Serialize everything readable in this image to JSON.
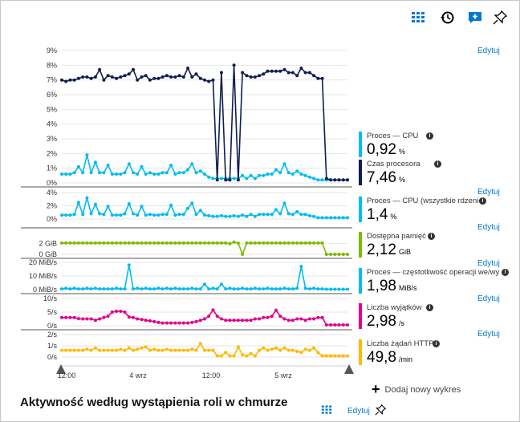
{
  "toolbar": {
    "icons": [
      "grid-icon",
      "history-icon",
      "feedback-icon",
      "pin-icon"
    ]
  },
  "edit_label": "Edytuj",
  "footer": {
    "title": "Aktywność według wystąpienia roli w chmurze",
    "edit_label": "Edytuj"
  },
  "add_chart_label": "Dodaj nowy wykres",
  "colors": {
    "cpu": "#00bcf2",
    "cpu_time": "#0f1e50",
    "memory": "#7fba00",
    "io": "#00bcf2",
    "exceptions": "#e3008c",
    "http": "#ffb900",
    "link": "#0078d4"
  },
  "chart_data": {
    "type": "line",
    "x_ticks": [
      "12:00",
      "4 wrz",
      "12:00",
      "5 wrz"
    ],
    "panels": [
      {
        "y_ticks": [
          "9%",
          "8%",
          "7%",
          "6%",
          "5%",
          "4%",
          "3%",
          "2%",
          "1%",
          "0%"
        ],
        "ylim": [
          0,
          9
        ],
        "series": [
          {
            "name": "Proces — CPU",
            "legend_value": "0,92",
            "unit": "%",
            "color": "#00bcf2",
            "values": [
              0.6,
              0.6,
              0.6,
              0.7,
              1.1,
              0.7,
              1.9,
              0.7,
              1.4,
              0.7,
              0.7,
              1.2,
              0.6,
              0.6,
              0.6,
              0.7,
              1.3,
              0.7,
              0.6,
              1.1,
              0.6,
              0.7,
              0.6,
              0.6,
              0.7,
              0.7,
              1.2,
              0.6,
              0.7,
              0.7,
              0.9,
              1.3,
              0.7,
              0.8,
              0.6,
              0.4,
              0.3,
              0.3,
              0.3,
              0.3,
              0.3,
              0.3,
              0.3,
              0.5,
              0.3,
              0.5,
              0.3,
              0.5,
              0.5,
              0.6,
              0.6,
              0.9,
              0.7,
              1.3,
              0.7,
              0.6,
              0.8,
              0.6,
              0.5,
              0.4,
              0.3,
              0.2,
              0.2,
              0.2,
              0.2,
              0.2,
              0.2,
              0.2,
              0.2
            ]
          },
          {
            "name": "Czas procesora",
            "legend_value": "7,46",
            "unit": "%",
            "color": "#0f1e50",
            "values": [
              7.0,
              6.9,
              7.0,
              7.0,
              7.1,
              7.2,
              7.2,
              7.1,
              7.2,
              7.7,
              7.0,
              7.3,
              7.2,
              7.1,
              7.2,
              7.3,
              7.4,
              7.7,
              7.0,
              7.2,
              7.3,
              7.0,
              7.1,
              7.1,
              7.2,
              7.3,
              7.2,
              7.2,
              7.3,
              7.2,
              7.8,
              7.2,
              7.4,
              7.1,
              7.0,
              6.9,
              7.0,
              0.2,
              7.5,
              0.2,
              0.2,
              8.0,
              0.2,
              7.5,
              7.3,
              7.2,
              7.2,
              7.3,
              7.4,
              7.6,
              7.6,
              7.6,
              7.6,
              7.7,
              7.5,
              7.5,
              7.3,
              7.8,
              7.5,
              7.5,
              7.3,
              7.1,
              7.1,
              0.3,
              0.2,
              0.2,
              0.2,
              0.2,
              0.2
            ]
          }
        ]
      },
      {
        "y_ticks": [
          "4%",
          "2%",
          "0%"
        ],
        "ylim": [
          0,
          4
        ],
        "series": [
          {
            "name": "Proces — CPU (wszystkie rdzenie)",
            "legend_value": "1,4",
            "unit": "%",
            "color": "#00bcf2",
            "values": [
              0.6,
              0.6,
              0.6,
              0.7,
              2.5,
              0.7,
              3.2,
              0.8,
              2.2,
              0.8,
              0.7,
              1.9,
              0.6,
              0.6,
              0.6,
              0.8,
              2.3,
              0.8,
              0.6,
              1.9,
              0.6,
              0.7,
              0.6,
              0.6,
              0.7,
              0.7,
              2.1,
              0.6,
              0.7,
              0.7,
              1.6,
              2.4,
              0.7,
              1.3,
              0.6,
              0.5,
              0.4,
              0.4,
              0.5,
              0.4,
              0.4,
              0.5,
              0.4,
              0.6,
              0.4,
              0.7,
              0.4,
              0.7,
              0.7,
              0.7,
              0.7,
              1.4,
              0.8,
              2.4,
              0.8,
              0.7,
              1.1,
              0.7,
              0.7,
              0.5,
              0.4,
              0.2,
              0.2,
              0.2,
              0.2,
              0.2,
              0.2,
              0.2,
              0.2
            ]
          }
        ]
      },
      {
        "y_ticks": [
          "2 GiB",
          "0 GiB"
        ],
        "ylim": [
          0,
          3
        ],
        "series": [
          {
            "name": "Dostępna pamięć",
            "legend_value": "2,12",
            "unit": "GiB",
            "color": "#7fba00",
            "values": [
              2.12,
              2.12,
              2.12,
              2.12,
              2.12,
              2.12,
              2.12,
              2.12,
              2.12,
              2.12,
              2.12,
              2.12,
              2.12,
              2.12,
              2.12,
              2.12,
              2.12,
              2.12,
              2.12,
              2.12,
              2.12,
              2.12,
              2.12,
              2.12,
              2.12,
              2.12,
              2.12,
              2.12,
              2.12,
              2.12,
              2.12,
              2.12,
              2.12,
              2.12,
              2.12,
              2.12,
              2.12,
              2.12,
              2.12,
              2.12,
              2.0,
              2.3,
              2.1,
              0.0,
              2.12,
              2.12,
              2.12,
              2.12,
              2.12,
              2.12,
              2.12,
              2.12,
              2.12,
              2.12,
              2.12,
              2.12,
              2.12,
              2.12,
              2.12,
              2.12,
              2.12,
              2.12,
              2.12,
              0.0,
              0.0,
              0.0,
              0.0,
              0.0,
              0.0
            ]
          }
        ]
      },
      {
        "y_ticks": [
          "20 MiB/s",
          "10 MiB/s",
          "0 MiB/s"
        ],
        "ylim": [
          0,
          20
        ],
        "series": [
          {
            "name": "Proces — częstotliwość operacji we/wy",
            "legend_value": "1,98",
            "unit": "MiB/s",
            "color": "#00bcf2",
            "values": [
              0.5,
              1.0,
              0.5,
              1.0,
              0.5,
              0.5,
              1.0,
              0.5,
              1.0,
              0.5,
              0.5,
              0.5,
              0.5,
              1.0,
              0.5,
              0.5,
              18.0,
              0.5,
              1.0,
              0.5,
              1.0,
              0.5,
              0.5,
              1.0,
              0.5,
              1.0,
              0.5,
              1.0,
              0.5,
              0.5,
              0.5,
              1.0,
              0.5,
              0.5,
              4.0,
              0.5,
              1.0,
              0.5,
              4.0,
              0.5,
              1.0,
              0.5,
              0.5,
              1.0,
              0.5,
              0.5,
              1.0,
              0.5,
              0.5,
              1.0,
              0.5,
              0.5,
              0.5,
              1.0,
              0.5,
              0.5,
              1.0,
              17.0,
              1.0,
              0.5,
              1.0,
              0.5,
              0.5,
              0.3,
              0.3,
              0.3,
              0.3,
              0.3,
              0.3
            ]
          }
        ]
      },
      {
        "y_ticks": [
          "10/s",
          "5/s",
          "0/s"
        ],
        "ylim": [
          0,
          10
        ],
        "series": [
          {
            "name": "Liczba wyjątków",
            "legend_value": "2,98",
            "unit": "/s",
            "color": "#e3008c",
            "values": [
              3.0,
              3.0,
              3.0,
              3.0,
              2.6,
              2.5,
              2.5,
              2.5,
              2.0,
              2.5,
              3.0,
              3.5,
              5.0,
              5.3,
              5.3,
              5.0,
              3.2,
              3.0,
              2.5,
              2.3,
              2.0,
              1.8,
              1.5,
              1.2,
              1.0,
              1.0,
              1.0,
              1.0,
              1.0,
              1.0,
              1.0,
              1.2,
              1.5,
              2.0,
              2.5,
              3.5,
              5.8,
              3.5,
              2.5,
              2.0,
              2.0,
              2.0,
              2.0,
              2.0,
              2.0,
              2.0,
              2.5,
              2.5,
              3.0,
              3.0,
              3.5,
              5.7,
              3.5,
              2.5,
              2.0,
              2.0,
              2.5,
              2.5,
              2.0,
              2.5,
              2.5,
              3.0,
              3.0,
              0.3,
              0.3,
              0.3,
              0.3,
              0.3,
              0.3
            ]
          }
        ]
      },
      {
        "y_ticks": [
          "2/s",
          "1/s",
          "0/s"
        ],
        "ylim": [
          0,
          2
        ],
        "series": [
          {
            "name": "Liczba żądań HTTP",
            "legend_value": "49,8",
            "unit": "/min",
            "color": "#ffb900",
            "values": [
              0.6,
              0.6,
              0.6,
              0.6,
              0.6,
              0.6,
              0.7,
              0.6,
              0.8,
              0.6,
              0.6,
              0.6,
              0.6,
              0.6,
              0.7,
              0.6,
              0.8,
              0.6,
              0.7,
              0.8,
              0.9,
              0.6,
              0.7,
              0.6,
              0.6,
              0.7,
              0.6,
              0.6,
              0.6,
              0.6,
              0.6,
              0.7,
              0.6,
              1.2,
              0.6,
              0.6,
              0.6,
              0.1,
              0.1,
              0.4,
              0.1,
              0.1,
              0.9,
              0.2,
              0.1,
              0.3,
              0.1,
              0.6,
              0.8,
              0.6,
              0.7,
              0.8,
              0.6,
              0.8,
              0.6,
              0.6,
              0.5,
              0.4,
              0.7,
              0.6,
              0.8,
              0.4,
              0.1,
              0.1,
              0.1,
              0.1,
              0.1,
              0.1,
              0.1
            ]
          }
        ]
      }
    ]
  }
}
